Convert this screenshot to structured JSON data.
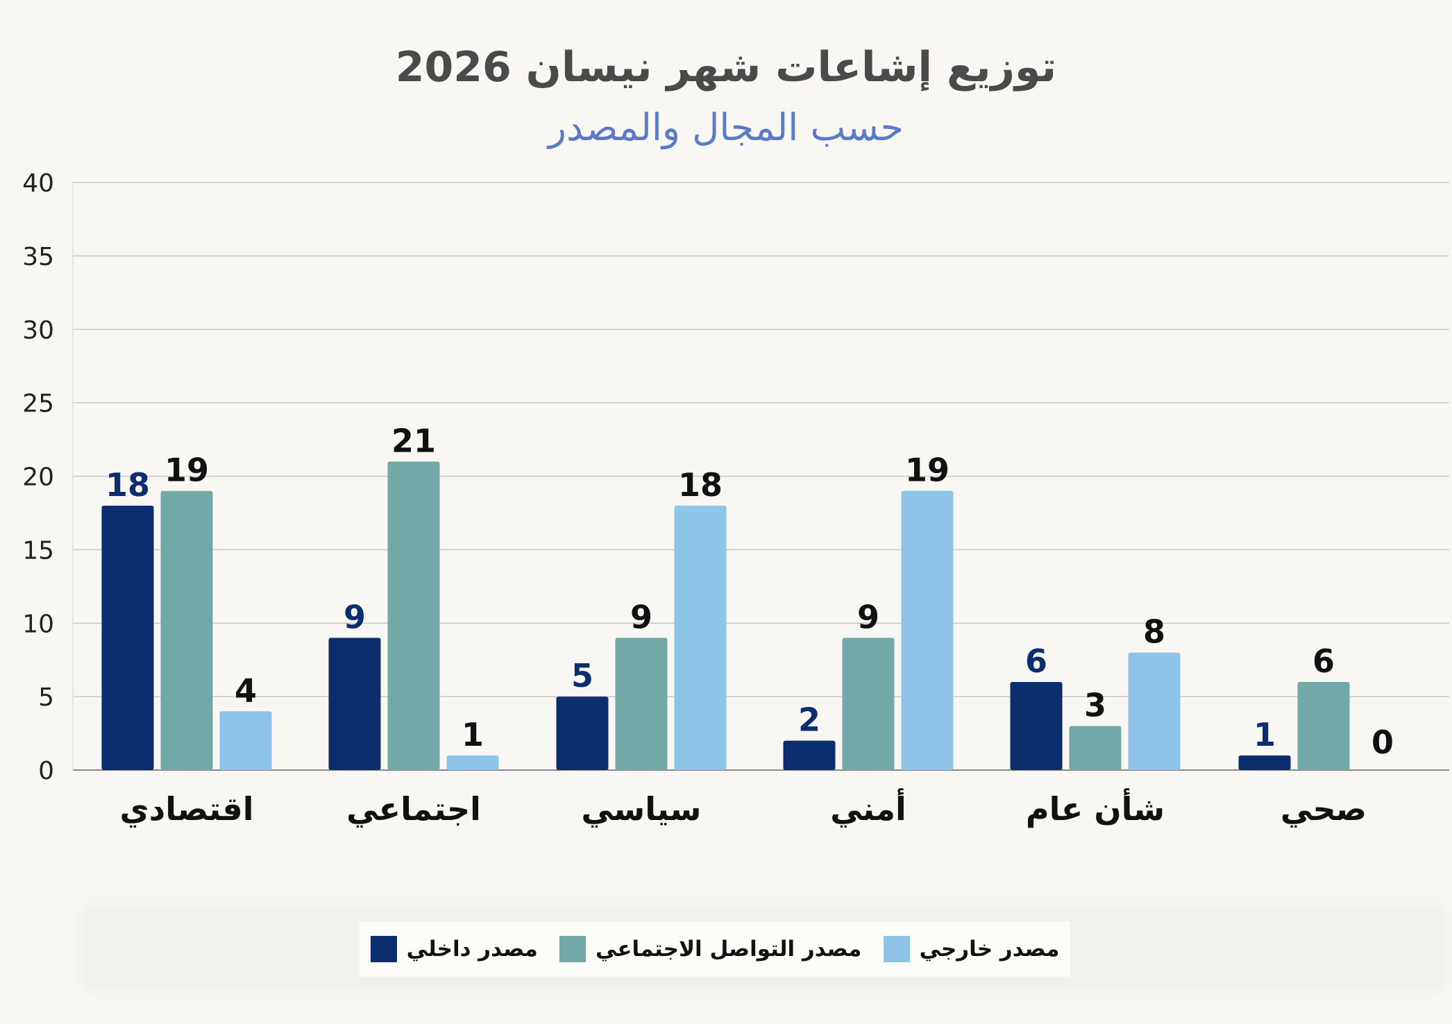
{
  "title": "توزيع إشاعات شهر نيسان 2026",
  "subtitle": "حسب المجال والمصدر",
  "colors": {
    "internal": "#0c2d6e",
    "social": "#72a9a6",
    "external": "#8ec4e8",
    "grid": "#c8c8c8",
    "internal_label": "#0c2d6e",
    "other_label": "#111111"
  },
  "chart_data": {
    "type": "bar",
    "title": "توزيع إشاعات شهر نيسان 2026",
    "subtitle": "حسب المجال والمصدر",
    "categories": [
      "اقتصادي",
      "اجتماعي",
      "سياسي",
      "أمني",
      "شأن عام",
      "صحي"
    ],
    "series": [
      {
        "name": "مصدر داخلي",
        "values": [
          18,
          9,
          5,
          2,
          6,
          1
        ]
      },
      {
        "name": "مصدر التواصل الاجتماعي",
        "values": [
          19,
          21,
          9,
          9,
          3,
          6
        ]
      },
      {
        "name": "مصدر خارجي",
        "values": [
          4,
          1,
          18,
          19,
          8,
          0
        ]
      }
    ],
    "ylim": [
      0,
      40
    ],
    "yticks": [
      0,
      5,
      10,
      15,
      20,
      25,
      30,
      35,
      40
    ],
    "grid": true,
    "legend": "bottom",
    "xlabel": "",
    "ylabel": ""
  }
}
